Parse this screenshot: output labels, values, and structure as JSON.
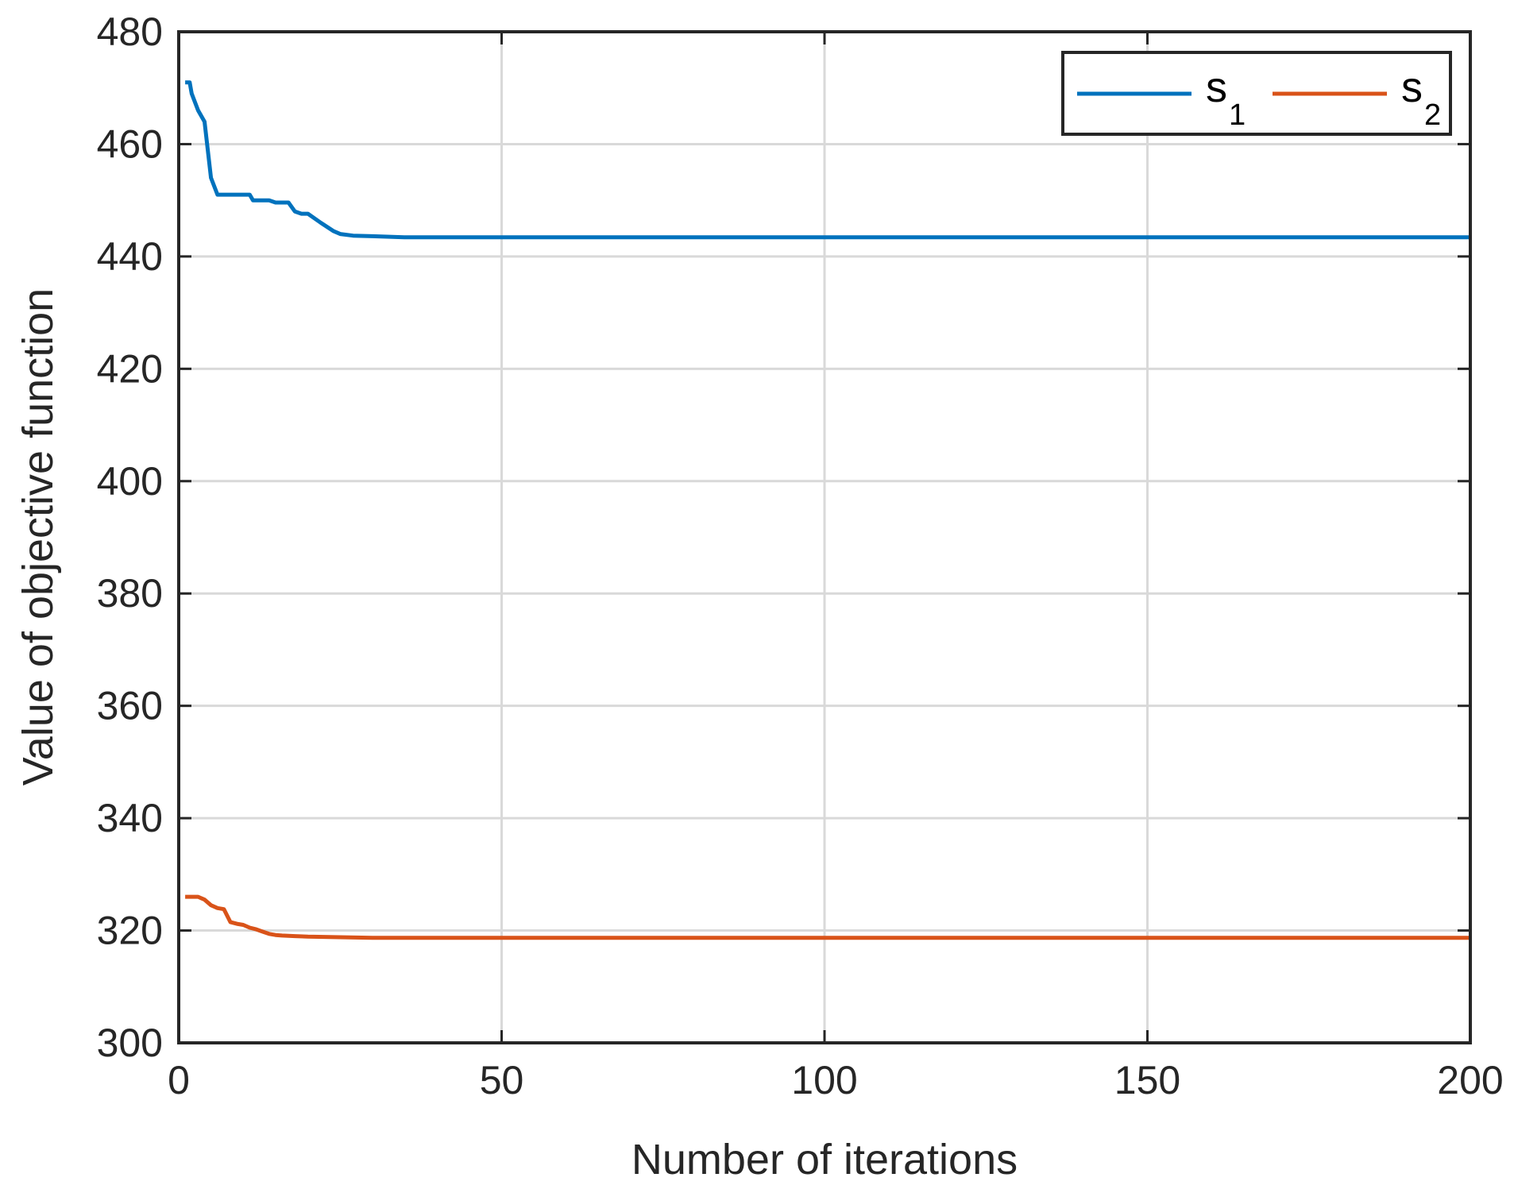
{
  "chart_data": {
    "type": "line",
    "title": "",
    "xlabel": "Number of iterations",
    "ylabel": "Value of objective function",
    "xlim": [
      0,
      200
    ],
    "ylim": [
      300,
      480
    ],
    "xticks": [
      0,
      50,
      100,
      150,
      200
    ],
    "yticks": [
      300,
      320,
      340,
      360,
      380,
      400,
      420,
      440,
      460,
      480
    ],
    "grid": true,
    "legend_position": "top-right",
    "legend_orientation": "horizontal",
    "series": [
      {
        "name": "s",
        "name_subscript": "1",
        "color": "#0072BD",
        "points": [
          [
            1,
            471
          ],
          [
            1.7,
            471
          ],
          [
            2,
            469
          ],
          [
            3,
            466
          ],
          [
            4,
            464
          ],
          [
            5,
            454
          ],
          [
            6,
            451
          ],
          [
            8,
            451
          ],
          [
            11,
            451
          ],
          [
            11.5,
            450
          ],
          [
            13,
            450
          ],
          [
            14,
            450
          ],
          [
            15,
            449.6
          ],
          [
            17,
            449.6
          ],
          [
            18,
            448
          ],
          [
            19,
            447.6
          ],
          [
            20,
            447.6
          ],
          [
            22,
            446
          ],
          [
            24,
            444.5
          ],
          [
            25,
            444
          ],
          [
            27,
            443.7
          ],
          [
            30,
            443.6
          ],
          [
            35,
            443.4
          ],
          [
            50,
            443.4
          ],
          [
            100,
            443.4
          ],
          [
            150,
            443.4
          ],
          [
            200,
            443.4
          ]
        ]
      },
      {
        "name": "s",
        "name_subscript": "2",
        "color": "#D95319",
        "points": [
          [
            1,
            326
          ],
          [
            3,
            326
          ],
          [
            4,
            325.5
          ],
          [
            5,
            324.5
          ],
          [
            6,
            324
          ],
          [
            7,
            323.8
          ],
          [
            8,
            321.5
          ],
          [
            9,
            321.2
          ],
          [
            10,
            321
          ],
          [
            11,
            320.5
          ],
          [
            12,
            320.2
          ],
          [
            13,
            319.8
          ],
          [
            14,
            319.4
          ],
          [
            15,
            319.2
          ],
          [
            16,
            319.1
          ],
          [
            18,
            319
          ],
          [
            20,
            318.9
          ],
          [
            25,
            318.8
          ],
          [
            30,
            318.7
          ],
          [
            50,
            318.7
          ],
          [
            100,
            318.7
          ],
          [
            150,
            318.7
          ],
          [
            200,
            318.7
          ]
        ]
      }
    ]
  }
}
